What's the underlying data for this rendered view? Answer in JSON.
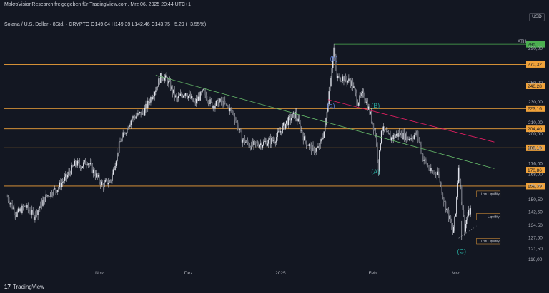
{
  "header": {
    "publisher": "MakroVisionResearch freigegeben für TradingView.com, Mrz 06, 2025 20:44 UTC+1",
    "symbol_line": "Solana / U.S. Dollar · 8Std. · CRYPTO  O149,04  H149,39  L142,46  C143,75  −5,29 (−3,55%)"
  },
  "currency": "USD",
  "branding": {
    "logo_text": "TradingView",
    "logo_icon": "tradingview-logo-icon"
  },
  "colors": {
    "background": "#131722",
    "candle": "#e0e3eb",
    "level_line": "#f0a23a",
    "ath_line": "#4caf50",
    "ath_tag": "#4caf50",
    "green_trend": "#66bb6a",
    "red_trend": "#e91e63",
    "wave_blue": "#5b7bd6",
    "wave_teal": "#26a69a"
  },
  "chart_data": {
    "type": "candlestick",
    "symbol": "Solana / U.S. Dollar",
    "interval": "8Std.",
    "y_scale": "log",
    "ylim": [
      113,
      318
    ],
    "x_tick_labels": [
      "Nov",
      "Dez",
      "2025",
      "Feb",
      "Mrz"
    ],
    "y_tick_labels": [
      "116,00",
      "121,50",
      "127,50",
      "134,50",
      "142,50",
      "150,50",
      "159,50",
      "168,00",
      "176,00",
      "188,00",
      "200,00",
      "210,00",
      "230,00",
      "250,00",
      "290,00"
    ],
    "horizontal_levels": [
      {
        "value": 295.11,
        "label": "295,11",
        "kind": "ath",
        "name": "ATH"
      },
      {
        "value": 270.32,
        "label": "270,32",
        "kind": "level"
      },
      {
        "value": 246.28,
        "label": "246,28",
        "kind": "level"
      },
      {
        "value": 223.16,
        "label": "223,16",
        "kind": "level"
      },
      {
        "value": 204.4,
        "label": "204,40",
        "kind": "level"
      },
      {
        "value": 188.18,
        "label": "188,18",
        "kind": "level"
      },
      {
        "value": 170.86,
        "label": "170,86",
        "kind": "level"
      },
      {
        "value": 159.39,
        "label": "159,39",
        "kind": "level"
      }
    ],
    "trendlines": [
      {
        "color": "green",
        "from": {
          "date": "2024-11-20",
          "price": 258
        },
        "to": {
          "date": "2025-03-14",
          "price": 172
        }
      },
      {
        "color": "red",
        "from": {
          "date": "2025-01-17",
          "price": 232
        },
        "to": {
          "date": "2025-03-14",
          "price": 193
        }
      }
    ],
    "wave_labels": [
      {
        "text": "(b)",
        "date": "2025-01-19",
        "price": 275,
        "color": "blue"
      },
      {
        "text": "(a)",
        "date": "2025-01-18",
        "price": 224,
        "color": "blue"
      },
      {
        "text": "(B)",
        "date": "2025-02-02",
        "price": 224,
        "color": "teal"
      },
      {
        "text": "(A)",
        "date": "2025-02-02",
        "price": 168,
        "color": "teal"
      },
      {
        "text": "(C)",
        "date": "2025-03-03",
        "price": 119,
        "color": "teal"
      }
    ],
    "liquidity_zones": [
      {
        "label": "Low Liquidity",
        "price_top": 156,
        "price_bottom": 152
      },
      {
        "label": "Liquidity",
        "price_top": 141.5,
        "price_bottom": 137.5
      },
      {
        "label": "Low Liquidity",
        "price_top": 127,
        "price_bottom": 124
      }
    ],
    "projection_path": [
      {
        "date": "2025-03-02",
        "price": 127
      },
      {
        "date": "2025-03-08",
        "price": 134
      }
    ],
    "price_path": [
      {
        "date": "2024-10-01",
        "price": 152
      },
      {
        "date": "2024-10-04",
        "price": 141
      },
      {
        "date": "2024-10-07",
        "price": 146
      },
      {
        "date": "2024-10-10",
        "price": 140
      },
      {
        "date": "2024-10-14",
        "price": 152
      },
      {
        "date": "2024-10-18",
        "price": 158
      },
      {
        "date": "2024-10-21",
        "price": 166
      },
      {
        "date": "2024-10-24",
        "price": 176
      },
      {
        "date": "2024-10-26",
        "price": 174
      },
      {
        "date": "2024-10-28",
        "price": 178
      },
      {
        "date": "2024-10-30",
        "price": 170
      },
      {
        "date": "2024-11-02",
        "price": 160
      },
      {
        "date": "2024-11-05",
        "price": 164
      },
      {
        "date": "2024-11-08",
        "price": 193
      },
      {
        "date": "2024-11-12",
        "price": 214
      },
      {
        "date": "2024-11-16",
        "price": 220
      },
      {
        "date": "2024-11-20",
        "price": 244
      },
      {
        "date": "2024-11-22",
        "price": 258
      },
      {
        "date": "2024-11-24",
        "price": 252
      },
      {
        "date": "2024-11-27",
        "price": 232
      },
      {
        "date": "2024-11-30",
        "price": 240
      },
      {
        "date": "2024-12-03",
        "price": 228
      },
      {
        "date": "2024-12-06",
        "price": 240
      },
      {
        "date": "2024-12-09",
        "price": 226
      },
      {
        "date": "2024-12-12",
        "price": 230
      },
      {
        "date": "2024-12-16",
        "price": 220
      },
      {
        "date": "2024-12-19",
        "price": 196
      },
      {
        "date": "2024-12-22",
        "price": 190
      },
      {
        "date": "2024-12-26",
        "price": 192
      },
      {
        "date": "2024-12-30",
        "price": 195
      },
      {
        "date": "2025-01-03",
        "price": 210
      },
      {
        "date": "2025-01-06",
        "price": 218
      },
      {
        "date": "2025-01-09",
        "price": 195
      },
      {
        "date": "2025-01-12",
        "price": 186
      },
      {
        "date": "2025-01-14",
        "price": 188
      },
      {
        "date": "2025-01-16",
        "price": 205
      },
      {
        "date": "2025-01-18",
        "price": 258
      },
      {
        "date": "2025-01-19",
        "price": 290
      },
      {
        "date": "2025-01-20",
        "price": 255
      },
      {
        "date": "2025-01-22",
        "price": 255
      },
      {
        "date": "2025-01-25",
        "price": 250
      },
      {
        "date": "2025-01-27",
        "price": 230
      },
      {
        "date": "2025-01-29",
        "price": 238
      },
      {
        "date": "2025-01-31",
        "price": 220
      },
      {
        "date": "2025-02-02",
        "price": 200
      },
      {
        "date": "2025-02-03",
        "price": 172
      },
      {
        "date": "2025-02-04",
        "price": 205
      },
      {
        "date": "2025-02-07",
        "price": 196
      },
      {
        "date": "2025-02-10",
        "price": 200
      },
      {
        "date": "2025-02-13",
        "price": 196
      },
      {
        "date": "2025-02-16",
        "price": 200
      },
      {
        "date": "2025-02-18",
        "price": 180
      },
      {
        "date": "2025-02-21",
        "price": 168
      },
      {
        "date": "2025-02-23",
        "price": 170
      },
      {
        "date": "2025-02-25",
        "price": 150
      },
      {
        "date": "2025-02-27",
        "price": 138
      },
      {
        "date": "2025-02-28",
        "price": 130
      },
      {
        "date": "2025-03-01",
        "price": 141
      },
      {
        "date": "2025-03-02",
        "price": 174
      },
      {
        "date": "2025-03-03",
        "price": 151
      },
      {
        "date": "2025-03-04",
        "price": 133
      },
      {
        "date": "2025-03-05",
        "price": 140
      },
      {
        "date": "2025-03-06",
        "price": 143.75
      }
    ]
  }
}
